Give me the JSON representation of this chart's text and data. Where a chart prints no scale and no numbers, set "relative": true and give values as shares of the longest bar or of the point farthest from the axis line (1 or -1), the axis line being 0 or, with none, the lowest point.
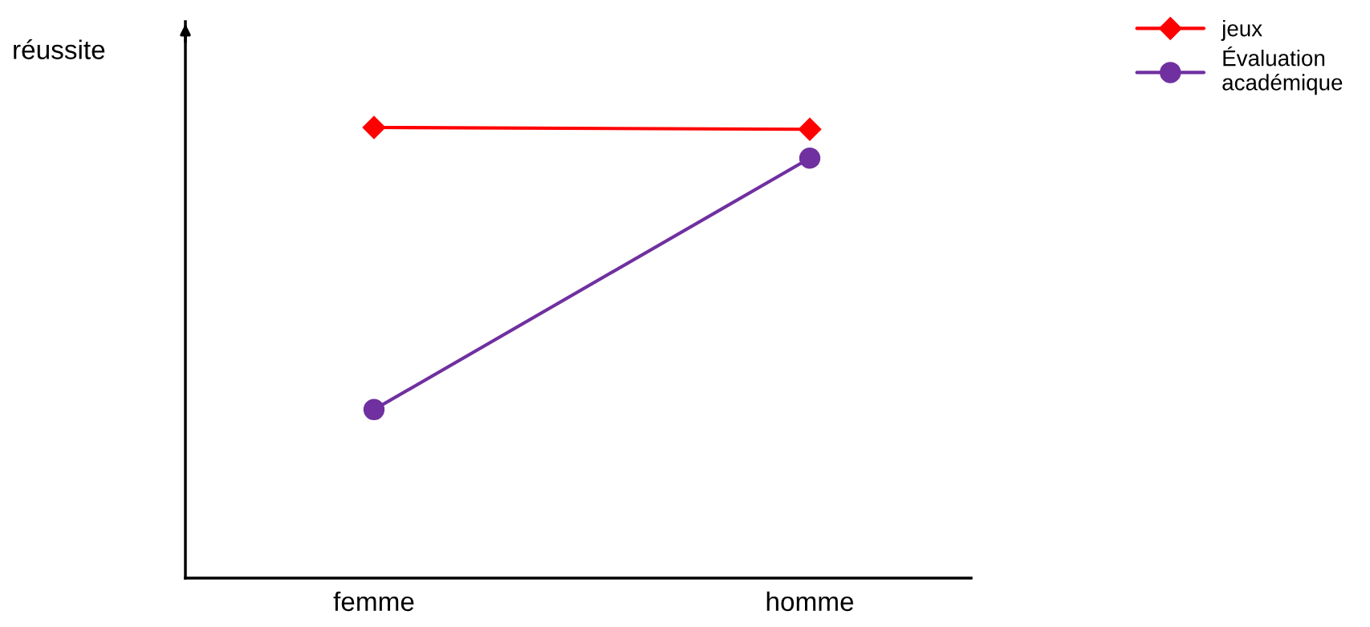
{
  "chart_data": {
    "type": "line",
    "relative": true,
    "ylabel": "réussite",
    "categories": [
      "femme",
      "homme"
    ],
    "series": [
      {
        "name": "jeux",
        "color": "#ff0000",
        "marker": "diamond",
        "values": [
          1,
          0.996
        ]
      },
      {
        "name": "Évaluation\nacadémique",
        "color": "#7030a0",
        "marker": "circle",
        "values": [
          0.374,
          0.932
        ]
      }
    ],
    "legend": "top right",
    "grid": false,
    "line_style": "solid"
  }
}
